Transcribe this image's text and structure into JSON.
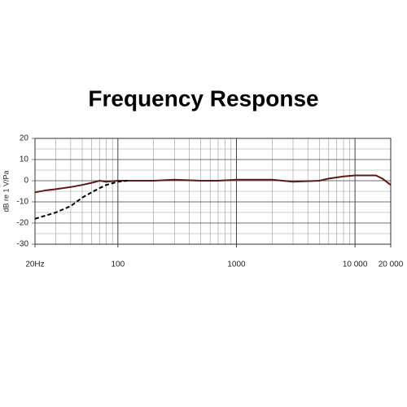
{
  "chart_data": {
    "type": "line",
    "title": "Frequency Response",
    "y_label": "dB re 1 V/Pa",
    "x_scale": "log",
    "xlim": [
      20,
      20000
    ],
    "xticks": [
      {
        "value": 20,
        "label": "20Hz"
      },
      100,
      1000,
      {
        "value": 10000,
        "label": "10 000"
      },
      {
        "value": 20000,
        "label": "20 000"
      }
    ],
    "xgrid": [
      20,
      30,
      40,
      50,
      60,
      70,
      80,
      90,
      100,
      200,
      300,
      400,
      500,
      600,
      700,
      800,
      900,
      1000,
      2000,
      3000,
      4000,
      5000,
      6000,
      7000,
      8000,
      9000,
      10000,
      20000
    ],
    "ylim": [
      -30,
      20
    ],
    "yticks": [
      20,
      10,
      0,
      -10,
      -20,
      -30
    ],
    "ygrid": [
      20,
      15,
      10,
      5,
      0,
      -5,
      -10,
      -15,
      -20,
      -25,
      -30
    ],
    "grid": true,
    "series": [
      {
        "color": "#5a1a1a",
        "dash": false,
        "x": [
          20,
          25,
          30,
          40,
          50,
          60,
          70,
          80,
          100,
          150,
          200,
          300,
          500,
          700,
          1000,
          2000,
          3000,
          5000,
          6000,
          8000,
          10000,
          15000,
          17000,
          20000
        ],
        "values": [
          -5.5,
          -4.5,
          -4,
          -3,
          -2,
          -1,
          0,
          -0.5,
          0,
          0,
          0,
          0.5,
          0,
          0,
          0.5,
          0.5,
          -0.5,
          0,
          1,
          2,
          2.5,
          2.5,
          1,
          -2
        ]
      },
      {
        "color": "#000000",
        "dash": true,
        "x": [
          20,
          30,
          40,
          50,
          60,
          70,
          80,
          100,
          120
        ],
        "values": [
          -18,
          -15,
          -12,
          -8,
          -5.5,
          -3.5,
          -2,
          -0.5,
          0
        ]
      }
    ]
  }
}
